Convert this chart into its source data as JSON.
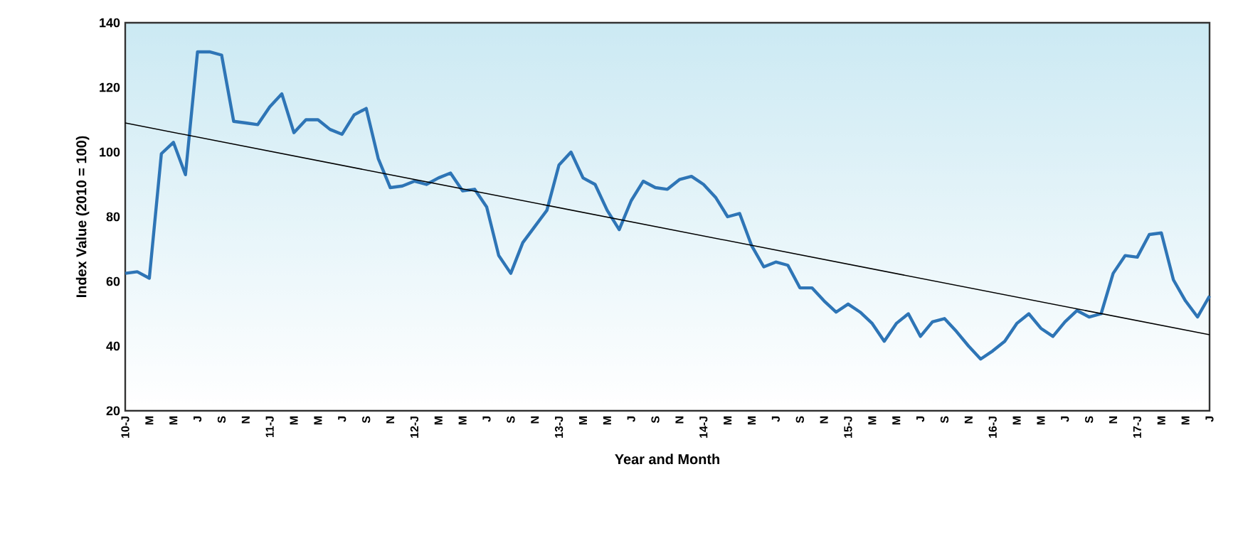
{
  "chart_data": {
    "type": "line",
    "xlabel": "Year and Month",
    "ylabel": "Index Value (2010 = 100)",
    "categories": [
      "10-J",
      null,
      "M",
      null,
      "M",
      null,
      "J",
      null,
      "S",
      null,
      "N",
      null,
      "11-J",
      null,
      "M",
      null,
      "M",
      null,
      "J",
      null,
      "S",
      null,
      "N",
      null,
      "12-J",
      null,
      "M",
      null,
      "M",
      null,
      "J",
      null,
      "S",
      null,
      "N",
      null,
      "13-J",
      null,
      "M",
      null,
      "M",
      null,
      "J",
      null,
      "S",
      null,
      "N",
      null,
      "14-J",
      null,
      "M",
      null,
      "M",
      null,
      "J",
      null,
      "S",
      null,
      "N",
      null,
      "15-J",
      null,
      "M",
      null,
      "M",
      null,
      "J",
      null,
      "S",
      null,
      "N",
      null,
      "16-J",
      null,
      "M",
      null,
      "M",
      null,
      "J",
      null,
      "S",
      null,
      "N",
      null,
      "17-J",
      null,
      "M",
      null,
      "M",
      null,
      "J"
    ],
    "series": [
      {
        "color": "#2e75b6",
        "values": [
          62.5,
          63,
          61,
          99.5,
          103,
          93,
          131,
          131,
          130,
          109.5,
          109,
          108.5,
          114,
          118,
          106,
          110,
          110,
          107,
          105.5,
          111.5,
          113.5,
          98,
          89,
          89.5,
          91,
          90,
          92,
          93.5,
          88,
          88.5,
          83,
          68,
          62.5,
          72,
          77,
          82,
          96,
          100,
          92,
          90,
          82,
          76,
          85,
          91,
          89,
          88.5,
          91.5,
          92.5,
          90,
          86,
          80,
          81,
          71,
          64.5,
          66,
          65,
          58,
          58,
          54,
          50.5,
          53,
          50.5,
          47,
          41.5,
          47,
          50,
          43,
          47.5,
          48.5,
          44.5,
          40,
          36,
          38.5,
          41.5,
          47,
          50,
          45.5,
          43,
          47.5,
          51,
          49,
          50,
          62.5,
          68,
          67.5,
          74.5,
          75,
          60.5,
          54,
          49,
          55.5
        ]
      },
      {
        "color": "#000000",
        "type": "line",
        "values": [
          109,
          null,
          null,
          null,
          null,
          null,
          null,
          null,
          null,
          null,
          null,
          null,
          null,
          null,
          null,
          null,
          null,
          null,
          null,
          null,
          null,
          null,
          null,
          null,
          null,
          null,
          null,
          null,
          null,
          null,
          null,
          null,
          null,
          null,
          null,
          null,
          null,
          null,
          null,
          null,
          null,
          null,
          null,
          null,
          null,
          null,
          null,
          null,
          null,
          null,
          null,
          null,
          null,
          null,
          null,
          null,
          null,
          null,
          null,
          null,
          null,
          null,
          null,
          null,
          null,
          null,
          null,
          null,
          null,
          null,
          null,
          null,
          null,
          null,
          null,
          null,
          null,
          null,
          null,
          null,
          null,
          null,
          null,
          null,
          null,
          null,
          null,
          null,
          null,
          null,
          43.5
        ]
      }
    ],
    "ylim": [
      20,
      140
    ],
    "yticks": [
      20,
      40,
      60,
      80,
      100,
      120,
      140
    ]
  }
}
